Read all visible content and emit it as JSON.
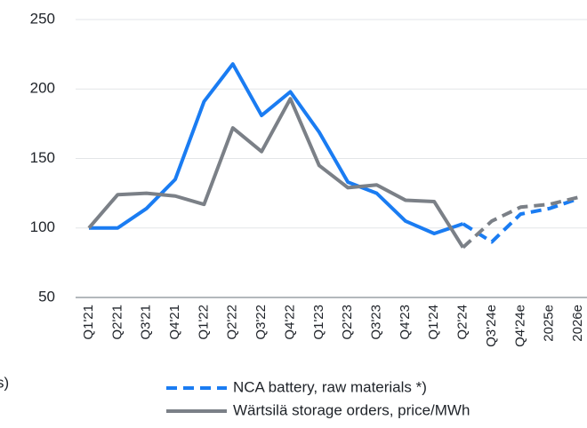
{
  "chart_data": {
    "type": "line",
    "categories": [
      "Q1'21",
      "Q2'21",
      "Q3'21",
      "Q4'21",
      "Q1'22",
      "Q2'22",
      "Q3'22",
      "Q4'22",
      "Q1'23",
      "Q2'23",
      "Q3'23",
      "Q4'23",
      "Q1'24",
      "Q2'24",
      "Q3'24e",
      "Q4'24e",
      "2025e",
      "2026e"
    ],
    "series": [
      {
        "name": "NCA battery, raw materials *)",
        "color": "#1a7cf2",
        "legend_dashed": true,
        "values": [
          100,
          100,
          114,
          135,
          191,
          218,
          181,
          198,
          169,
          133,
          125,
          105,
          96,
          103,
          90,
          110,
          114,
          121
        ]
      },
      {
        "name": "Wärtsilä storage orders, price/MWh",
        "color": "#7b8087",
        "legend_dashed": false,
        "values": [
          100,
          124,
          125,
          123,
          117,
          172,
          155,
          193,
          145,
          129,
          131,
          120,
          119,
          86,
          105,
          115,
          117,
          122
        ]
      }
    ],
    "ylim": [
      50,
      250
    ],
    "yticks": [
      50,
      100,
      150,
      200,
      250
    ],
    "grid": true,
    "note": "s)"
  }
}
